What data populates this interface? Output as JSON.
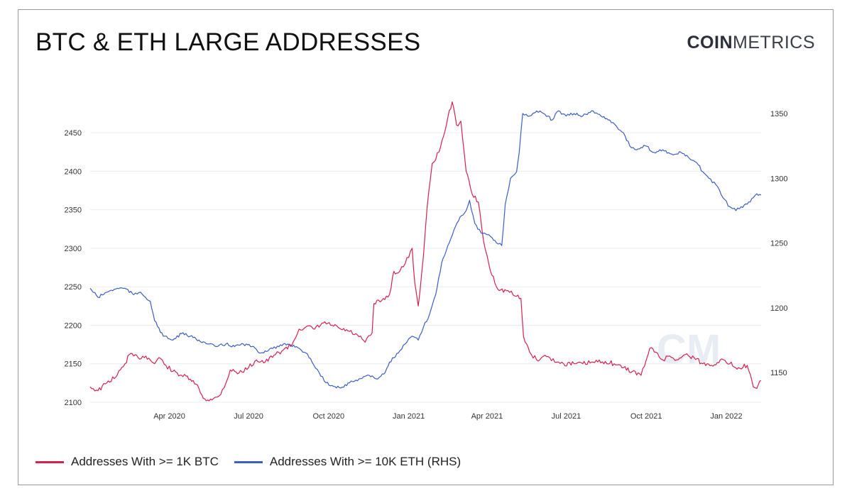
{
  "header": {
    "title": "BTC & ETH LARGE ADDRESSES",
    "logo_bold": "COIN",
    "logo_light": "METRICS"
  },
  "chart_data": {
    "type": "line",
    "title": "BTC & ETH LARGE ADDRESSES",
    "xlabel": "",
    "ylabel": "",
    "y2label": "",
    "xlim": [
      "2020-01-01",
      "2022-02-10"
    ],
    "ylim": [
      2100,
      2495
    ],
    "y2lim": [
      1135,
      1358
    ],
    "x_ticks": [
      {
        "date": "2020-04-01",
        "label": "Apr 2020"
      },
      {
        "date": "2020-07-01",
        "label": "Jul 2020"
      },
      {
        "date": "2020-10-01",
        "label": "Oct 2020"
      },
      {
        "date": "2021-01-01",
        "label": "Jan 2021"
      },
      {
        "date": "2021-04-01",
        "label": "Apr 2021"
      },
      {
        "date": "2021-07-01",
        "label": "Jul 2021"
      },
      {
        "date": "2021-10-01",
        "label": "Oct 2021"
      },
      {
        "date": "2022-01-01",
        "label": "Jan 2022"
      }
    ],
    "y_ticks": [
      2100,
      2150,
      2200,
      2250,
      2300,
      2350,
      2400,
      2450
    ],
    "y2_ticks": [
      1150,
      1200,
      1250,
      1300,
      1350
    ],
    "grid": true,
    "legend_position": "bottom-left",
    "watermark": "CM",
    "series": [
      {
        "name": "Addresses With >= 1K BTC",
        "axis": "left",
        "color": "#d6204e",
        "points": [
          [
            "2020-01-01",
            2120
          ],
          [
            "2020-01-10",
            2115
          ],
          [
            "2020-01-20",
            2125
          ],
          [
            "2020-02-01",
            2135
          ],
          [
            "2020-02-10",
            2150
          ],
          [
            "2020-02-15",
            2162
          ],
          [
            "2020-02-25",
            2158
          ],
          [
            "2020-03-05",
            2160
          ],
          [
            "2020-03-15",
            2150
          ],
          [
            "2020-03-20",
            2158
          ],
          [
            "2020-03-28",
            2148
          ],
          [
            "2020-04-05",
            2140
          ],
          [
            "2020-04-15",
            2135
          ],
          [
            "2020-04-25",
            2130
          ],
          [
            "2020-05-05",
            2118
          ],
          [
            "2020-05-10",
            2105
          ],
          [
            "2020-05-20",
            2103
          ],
          [
            "2020-05-28",
            2108
          ],
          [
            "2020-06-05",
            2125
          ],
          [
            "2020-06-10",
            2142
          ],
          [
            "2020-06-20",
            2138
          ],
          [
            "2020-07-01",
            2145
          ],
          [
            "2020-07-10",
            2155
          ],
          [
            "2020-07-20",
            2152
          ],
          [
            "2020-08-01",
            2162
          ],
          [
            "2020-08-10",
            2168
          ],
          [
            "2020-08-20",
            2175
          ],
          [
            "2020-08-28",
            2195
          ],
          [
            "2020-09-05",
            2198
          ],
          [
            "2020-09-15",
            2195
          ],
          [
            "2020-09-25",
            2203
          ],
          [
            "2020-10-05",
            2200
          ],
          [
            "2020-10-15",
            2195
          ],
          [
            "2020-10-25",
            2192
          ],
          [
            "2020-11-05",
            2185
          ],
          [
            "2020-11-12",
            2178
          ],
          [
            "2020-11-20",
            2190
          ],
          [
            "2020-11-22",
            2228
          ],
          [
            "2020-12-01",
            2232
          ],
          [
            "2020-12-10",
            2240
          ],
          [
            "2020-12-15",
            2270
          ],
          [
            "2020-12-20",
            2268
          ],
          [
            "2020-12-28",
            2280
          ],
          [
            "2021-01-05",
            2300
          ],
          [
            "2021-01-08",
            2255
          ],
          [
            "2021-01-12",
            2225
          ],
          [
            "2021-01-18",
            2290
          ],
          [
            "2021-01-22",
            2350
          ],
          [
            "2021-01-28",
            2410
          ],
          [
            "2021-02-05",
            2425
          ],
          [
            "2021-02-10",
            2445
          ],
          [
            "2021-02-15",
            2470
          ],
          [
            "2021-02-20",
            2490
          ],
          [
            "2021-02-25",
            2460
          ],
          [
            "2021-03-02",
            2465
          ],
          [
            "2021-03-08",
            2400
          ],
          [
            "2021-03-15",
            2370
          ],
          [
            "2021-03-22",
            2360
          ],
          [
            "2021-03-28",
            2310
          ],
          [
            "2021-04-05",
            2270
          ],
          [
            "2021-04-15",
            2245
          ],
          [
            "2021-04-25",
            2245
          ],
          [
            "2021-05-03",
            2238
          ],
          [
            "2021-05-10",
            2235
          ],
          [
            "2021-05-13",
            2185
          ],
          [
            "2021-05-20",
            2165
          ],
          [
            "2021-05-28",
            2155
          ],
          [
            "2021-06-05",
            2160
          ],
          [
            "2021-06-12",
            2158
          ],
          [
            "2021-06-20",
            2152
          ],
          [
            "2021-06-28",
            2150
          ],
          [
            "2021-07-10",
            2150
          ],
          [
            "2021-07-20",
            2150
          ],
          [
            "2021-08-01",
            2152
          ],
          [
            "2021-08-15",
            2153
          ],
          [
            "2021-08-25",
            2150
          ],
          [
            "2021-09-05",
            2145
          ],
          [
            "2021-09-15",
            2140
          ],
          [
            "2021-09-25",
            2135
          ],
          [
            "2021-10-01",
            2155
          ],
          [
            "2021-10-05",
            2170
          ],
          [
            "2021-10-12",
            2165
          ],
          [
            "2021-10-20",
            2155
          ],
          [
            "2021-10-28",
            2160
          ],
          [
            "2021-11-05",
            2155
          ],
          [
            "2021-11-15",
            2162
          ],
          [
            "2021-11-25",
            2158
          ],
          [
            "2021-12-05",
            2150
          ],
          [
            "2021-12-15",
            2148
          ],
          [
            "2021-12-25",
            2155
          ],
          [
            "2022-01-05",
            2150
          ],
          [
            "2022-01-15",
            2145
          ],
          [
            "2022-01-25",
            2148
          ],
          [
            "2022-02-01",
            2120
          ],
          [
            "2022-02-05",
            2118
          ],
          [
            "2022-02-10",
            2128
          ]
        ]
      },
      {
        "name": "Addresses With >= 10K ETH (RHS)",
        "axis": "right",
        "color": "#3c5ec6",
        "points": [
          [
            "2020-01-01",
            1215
          ],
          [
            "2020-01-10",
            1208
          ],
          [
            "2020-01-20",
            1212
          ],
          [
            "2020-02-01",
            1215
          ],
          [
            "2020-02-10",
            1215
          ],
          [
            "2020-02-20",
            1210
          ],
          [
            "2020-02-28",
            1212
          ],
          [
            "2020-03-10",
            1205
          ],
          [
            "2020-03-15",
            1190
          ],
          [
            "2020-03-25",
            1178
          ],
          [
            "2020-04-05",
            1175
          ],
          [
            "2020-04-15",
            1180
          ],
          [
            "2020-04-25",
            1178
          ],
          [
            "2020-05-05",
            1175
          ],
          [
            "2020-05-15",
            1172
          ],
          [
            "2020-05-25",
            1170
          ],
          [
            "2020-06-05",
            1172
          ],
          [
            "2020-06-15",
            1170
          ],
          [
            "2020-06-25",
            1172
          ],
          [
            "2020-07-05",
            1170
          ],
          [
            "2020-07-15",
            1165
          ],
          [
            "2020-07-25",
            1168
          ],
          [
            "2020-08-05",
            1170
          ],
          [
            "2020-08-15",
            1172
          ],
          [
            "2020-08-25",
            1170
          ],
          [
            "2020-09-05",
            1165
          ],
          [
            "2020-09-12",
            1158
          ],
          [
            "2020-09-20",
            1150
          ],
          [
            "2020-09-28",
            1142
          ],
          [
            "2020-10-05",
            1140
          ],
          [
            "2020-10-15",
            1138
          ],
          [
            "2020-10-25",
            1142
          ],
          [
            "2020-11-05",
            1145
          ],
          [
            "2020-11-15",
            1148
          ],
          [
            "2020-11-25",
            1145
          ],
          [
            "2020-12-05",
            1150
          ],
          [
            "2020-12-10",
            1158
          ],
          [
            "2020-12-20",
            1165
          ],
          [
            "2020-12-28",
            1172
          ],
          [
            "2021-01-05",
            1178
          ],
          [
            "2021-01-12",
            1175
          ],
          [
            "2021-01-18",
            1185
          ],
          [
            "2021-01-25",
            1195
          ],
          [
            "2021-02-01",
            1210
          ],
          [
            "2021-02-08",
            1235
          ],
          [
            "2021-02-15",
            1248
          ],
          [
            "2021-02-22",
            1260
          ],
          [
            "2021-03-01",
            1270
          ],
          [
            "2021-03-08",
            1275
          ],
          [
            "2021-03-12",
            1283
          ],
          [
            "2021-03-18",
            1265
          ],
          [
            "2021-03-25",
            1258
          ],
          [
            "2021-04-05",
            1255
          ],
          [
            "2021-04-12",
            1250
          ],
          [
            "2021-04-18",
            1248
          ],
          [
            "2021-04-22",
            1280
          ],
          [
            "2021-04-28",
            1300
          ],
          [
            "2021-05-05",
            1305
          ],
          [
            "2021-05-08",
            1320
          ],
          [
            "2021-05-12",
            1350
          ],
          [
            "2021-05-20",
            1348
          ],
          [
            "2021-05-28",
            1352
          ],
          [
            "2021-06-05",
            1350
          ],
          [
            "2021-06-15",
            1345
          ],
          [
            "2021-06-22",
            1352
          ],
          [
            "2021-07-01",
            1348
          ],
          [
            "2021-07-10",
            1350
          ],
          [
            "2021-07-20",
            1348
          ],
          [
            "2021-08-01",
            1352
          ],
          [
            "2021-08-10",
            1348
          ],
          [
            "2021-08-20",
            1345
          ],
          [
            "2021-08-28",
            1340
          ],
          [
            "2021-09-05",
            1335
          ],
          [
            "2021-09-12",
            1325
          ],
          [
            "2021-09-20",
            1322
          ],
          [
            "2021-09-30",
            1325
          ],
          [
            "2021-10-10",
            1320
          ],
          [
            "2021-10-20",
            1322
          ],
          [
            "2021-11-01",
            1318
          ],
          [
            "2021-11-10",
            1320
          ],
          [
            "2021-11-20",
            1315
          ],
          [
            "2021-11-28",
            1312
          ],
          [
            "2021-12-05",
            1305
          ],
          [
            "2021-12-12",
            1300
          ],
          [
            "2021-12-20",
            1295
          ],
          [
            "2021-12-28",
            1285
          ],
          [
            "2022-01-05",
            1278
          ],
          [
            "2022-01-12",
            1275
          ],
          [
            "2022-01-18",
            1278
          ],
          [
            "2022-01-25",
            1280
          ],
          [
            "2022-02-01",
            1285
          ],
          [
            "2022-02-05",
            1288
          ],
          [
            "2022-02-10",
            1287
          ]
        ]
      }
    ]
  }
}
